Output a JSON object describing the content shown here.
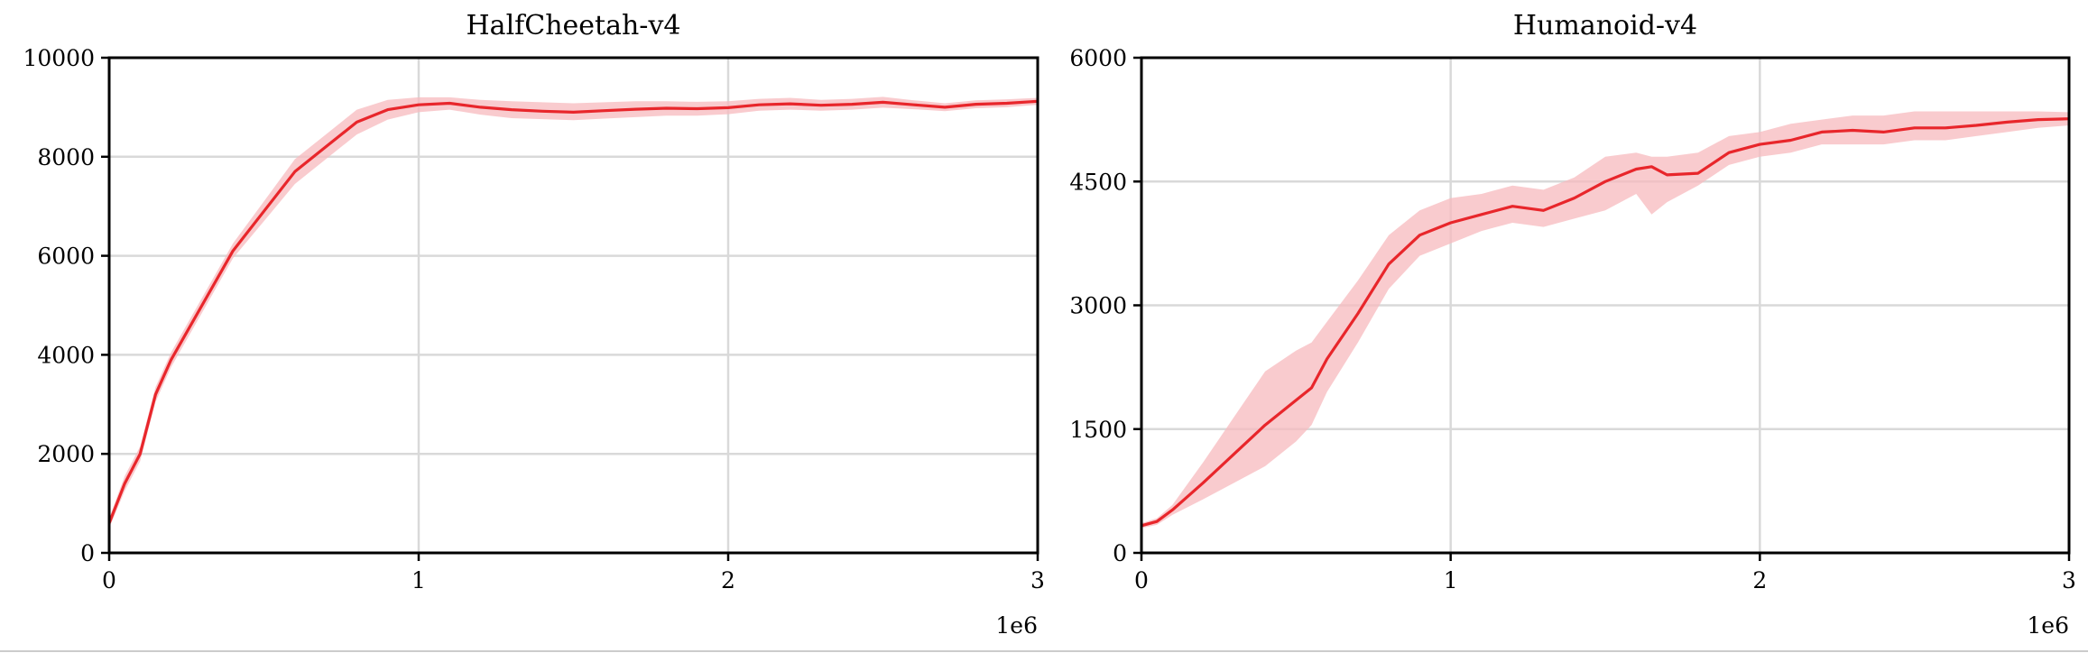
{
  "colors": {
    "line": "#e8262b",
    "band": "#f7b9bd"
  },
  "chart_data": [
    {
      "type": "line",
      "title": "HalfCheetah-v4",
      "xlabel": "",
      "ylabel": "",
      "x_offset_label": "1e6",
      "xlim": [
        0,
        3
      ],
      "ylim": [
        0,
        10000
      ],
      "xticks": [
        0,
        1,
        2,
        3
      ],
      "xtick_labels": [
        "0",
        "1",
        "2",
        "3"
      ],
      "yticks": [
        0,
        2000,
        4000,
        6000,
        8000,
        10000
      ],
      "ytick_labels": [
        "0",
        "2000",
        "4000",
        "6000",
        "8000",
        "10000"
      ],
      "grid": true,
      "series": [
        {
          "x": [
            0,
            0.05,
            0.1,
            0.15,
            0.2,
            0.3,
            0.4,
            0.5,
            0.6,
            0.7,
            0.8,
            0.9,
            1.0,
            1.1,
            1.2,
            1.3,
            1.4,
            1.5,
            1.6,
            1.7,
            1.8,
            1.9,
            2.0,
            2.1,
            2.2,
            2.3,
            2.4,
            2.5,
            2.6,
            2.7,
            2.8,
            2.9,
            3.0
          ],
          "y": [
            600,
            1400,
            2000,
            3200,
            3900,
            5000,
            6100,
            6900,
            7700,
            8200,
            8700,
            8950,
            9050,
            9080,
            9000,
            8950,
            8920,
            8900,
            8930,
            8960,
            8980,
            8970,
            8990,
            9050,
            9070,
            9040,
            9060,
            9100,
            9050,
            9000,
            9060,
            9080,
            9120
          ],
          "lower": [
            500,
            1250,
            1850,
            3050,
            3750,
            4850,
            5950,
            6700,
            7450,
            7950,
            8450,
            8750,
            8900,
            8950,
            8850,
            8780,
            8760,
            8740,
            8770,
            8800,
            8830,
            8830,
            8860,
            8930,
            8950,
            8930,
            8950,
            8990,
            8960,
            8920,
            8980,
            9000,
            9050
          ],
          "upper": [
            700,
            1550,
            2150,
            3350,
            4050,
            5150,
            6250,
            7100,
            7950,
            8450,
            8950,
            9150,
            9200,
            9200,
            9150,
            9120,
            9100,
            9080,
            9100,
            9120,
            9120,
            9110,
            9120,
            9170,
            9190,
            9150,
            9170,
            9210,
            9140,
            9080,
            9140,
            9160,
            9190
          ]
        }
      ]
    },
    {
      "type": "line",
      "title": "Humanoid-v4",
      "xlabel": "",
      "ylabel": "",
      "x_offset_label": "1e6",
      "xlim": [
        0,
        3
      ],
      "ylim": [
        0,
        6000
      ],
      "xticks": [
        0,
        1,
        2,
        3
      ],
      "xtick_labels": [
        "0",
        "1",
        "2",
        "3"
      ],
      "yticks": [
        0,
        1500,
        3000,
        4500,
        6000
      ],
      "ytick_labels": [
        "0",
        "1500",
        "3000",
        "4500",
        "6000"
      ],
      "grid": true,
      "series": [
        {
          "x": [
            0,
            0.05,
            0.1,
            0.2,
            0.3,
            0.4,
            0.5,
            0.55,
            0.6,
            0.7,
            0.8,
            0.9,
            1.0,
            1.1,
            1.2,
            1.3,
            1.4,
            1.5,
            1.6,
            1.65,
            1.7,
            1.8,
            1.9,
            2.0,
            2.1,
            2.2,
            2.3,
            2.4,
            2.5,
            2.6,
            2.7,
            2.8,
            2.9,
            3.0
          ],
          "y": [
            330,
            380,
            520,
            850,
            1200,
            1550,
            1850,
            2000,
            2350,
            2900,
            3500,
            3850,
            4000,
            4100,
            4200,
            4150,
            4300,
            4500,
            4650,
            4680,
            4580,
            4600,
            4850,
            4950,
            5000,
            5100,
            5120,
            5100,
            5150,
            5150,
            5180,
            5220,
            5250,
            5260
          ],
          "lower": [
            300,
            340,
            460,
            650,
            850,
            1050,
            1350,
            1550,
            1950,
            2550,
            3200,
            3600,
            3750,
            3900,
            4000,
            3950,
            4050,
            4150,
            4350,
            4100,
            4250,
            4450,
            4700,
            4800,
            4850,
            4950,
            4950,
            4950,
            5000,
            5000,
            5050,
            5100,
            5150,
            5180
          ],
          "upper": [
            360,
            420,
            580,
            1100,
            1650,
            2200,
            2450,
            2550,
            2800,
            3300,
            3850,
            4150,
            4300,
            4350,
            4450,
            4400,
            4550,
            4800,
            4850,
            4800,
            4800,
            4850,
            5050,
            5100,
            5200,
            5250,
            5300,
            5300,
            5350,
            5350,
            5350,
            5350,
            5350,
            5340
          ]
        }
      ]
    }
  ]
}
